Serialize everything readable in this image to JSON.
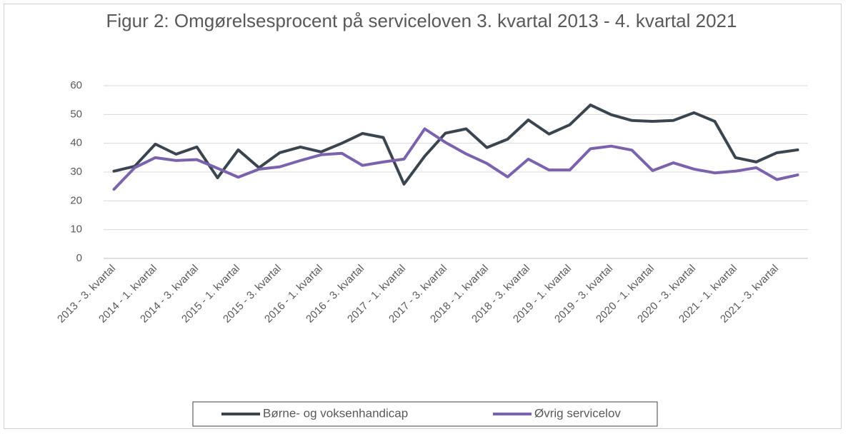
{
  "chart_data": {
    "type": "line",
    "title": "Figur 2: Omgørelsesprocent på serviceloven 3. kvartal 2013 - 4. kvartal 2021",
    "categories": [
      "2013 - 3. kvartal",
      null,
      "2014 - 1. kvartal",
      null,
      "2014 - 3. kvartal",
      null,
      "2015 - 1. kvartal",
      null,
      "2015 - 3. kvartal",
      null,
      "2016 - 1. kvartal",
      null,
      "2016 - 3. kvartal",
      null,
      "2017 - 1. kvartal",
      null,
      "2017 - 3. kvartal",
      null,
      "2018 - 1. kvartal",
      null,
      "2018 - 3. kvartal",
      null,
      "2019 - 1. kvartal",
      null,
      "2019 - 3. kvartal",
      null,
      "2020 - 1. kvartal",
      null,
      "2020 - 3. kvartal",
      null,
      "2021 - 1. kvartal",
      null,
      "2021 - 3. kvartal",
      null
    ],
    "series": [
      {
        "name": "Børne- og voksenhandicap",
        "color": "#3b4550",
        "values": [
          30.3,
          32,
          39.7,
          36.2,
          38.7,
          28,
          37.7,
          31.5,
          36.7,
          38.7,
          37,
          40,
          43.4,
          42,
          25.8,
          35.5,
          43.5,
          45,
          38.5,
          41.4,
          48.1,
          43.2,
          46.4,
          53.3,
          49.9,
          47.9,
          47.6,
          47.9,
          50.6,
          47.6,
          35,
          33.5,
          36.7,
          37.7
        ]
      },
      {
        "name": "Øvrig servicelov",
        "color": "#7a62ad",
        "values": [
          24,
          31.5,
          35,
          34,
          34.3,
          31.3,
          28.2,
          31,
          31.8,
          34,
          36,
          36.5,
          32.3,
          33.5,
          34.5,
          45,
          40.3,
          36.3,
          33,
          28.3,
          34.5,
          30.7,
          30.7,
          38.1,
          39,
          37.6,
          30.5,
          33.2,
          31,
          29.7,
          30.3,
          31.5,
          27.4,
          29
        ]
      }
    ],
    "ylim": [
      0,
      60
    ],
    "yticks": [
      0,
      10,
      20,
      30,
      40,
      50,
      60
    ],
    "grid": true,
    "legend": "bottom"
  }
}
